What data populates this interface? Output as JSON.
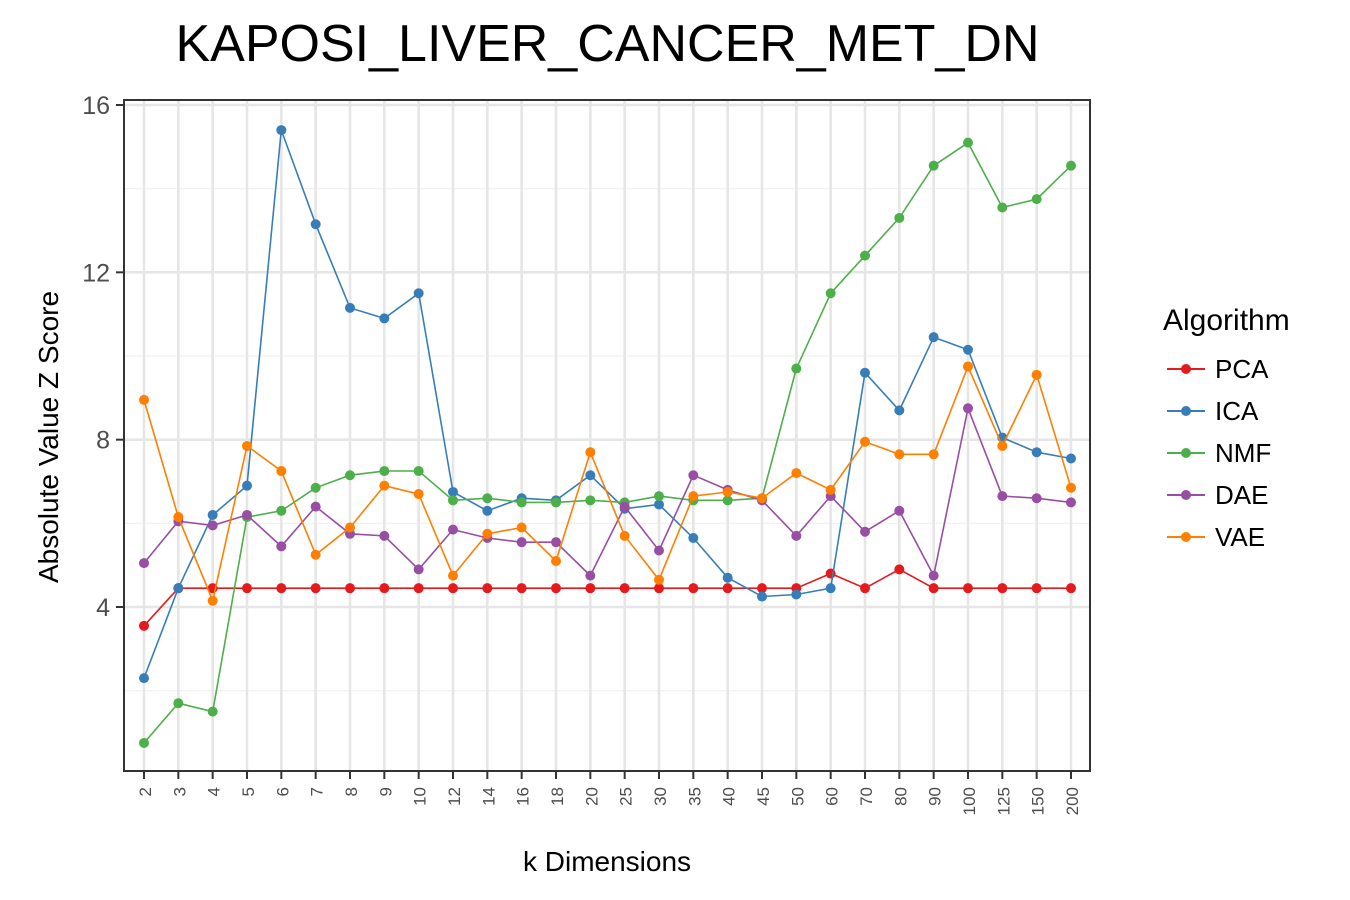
{
  "chart_data": {
    "type": "line",
    "title": "KAPOSI_LIVER_CANCER_MET_DN",
    "xlabel": "k Dimensions",
    "ylabel": "Absolute Value Z Score",
    "categories": [
      "2",
      "3",
      "4",
      "5",
      "6",
      "7",
      "8",
      "9",
      "10",
      "12",
      "14",
      "16",
      "18",
      "20",
      "25",
      "30",
      "35",
      "40",
      "45",
      "50",
      "60",
      "70",
      "80",
      "90",
      "100",
      "125",
      "150",
      "200"
    ],
    "ylim": [
      0,
      16
    ],
    "yticks": [
      4,
      8,
      12,
      16
    ],
    "grid": true,
    "legend": {
      "title": "Algorithm",
      "placement": "right"
    },
    "series": [
      {
        "name": "PCA",
        "color": "#e41a1c",
        "values": [
          3.55,
          4.45,
          4.45,
          4.45,
          4.45,
          4.45,
          4.45,
          4.45,
          4.45,
          4.45,
          4.45,
          4.45,
          4.45,
          4.45,
          4.45,
          4.45,
          4.45,
          4.45,
          4.45,
          4.45,
          4.8,
          4.45,
          4.9,
          4.45,
          4.45,
          4.45,
          4.45,
          4.45
        ]
      },
      {
        "name": "ICA",
        "color": "#377eb8",
        "values": [
          2.3,
          4.45,
          6.2,
          6.9,
          15.4,
          13.15,
          11.15,
          10.9,
          11.5,
          6.75,
          6.3,
          6.6,
          6.55,
          7.15,
          6.35,
          6.45,
          5.65,
          4.7,
          4.25,
          4.3,
          4.45,
          9.6,
          8.7,
          10.45,
          10.15,
          8.05,
          7.7,
          7.55
        ]
      },
      {
        "name": "NMF",
        "color": "#4daf4a",
        "values": [
          0.75,
          1.7,
          1.5,
          6.15,
          6.3,
          6.85,
          7.15,
          7.25,
          7.25,
          6.55,
          6.6,
          6.5,
          6.5,
          6.55,
          6.5,
          6.65,
          6.55,
          6.55,
          6.6,
          9.7,
          11.5,
          12.4,
          13.3,
          14.55,
          15.1,
          13.55,
          13.75,
          14.55
        ]
      },
      {
        "name": "DAE",
        "color": "#984ea3",
        "values": [
          5.05,
          6.05,
          5.95,
          6.2,
          5.45,
          6.4,
          5.75,
          5.7,
          4.9,
          5.85,
          5.65,
          5.55,
          5.55,
          4.75,
          6.4,
          5.35,
          7.15,
          6.8,
          6.55,
          5.7,
          6.65,
          5.8,
          6.3,
          4.75,
          8.75,
          6.65,
          6.6,
          6.5
        ]
      },
      {
        "name": "VAE",
        "color": "#ff7f00",
        "values": [
          8.95,
          6.15,
          4.15,
          7.85,
          7.25,
          5.25,
          5.9,
          6.9,
          6.7,
          4.75,
          5.75,
          5.9,
          5.1,
          7.7,
          5.7,
          4.65,
          6.65,
          6.75,
          6.6,
          7.2,
          6.8,
          7.95,
          7.65,
          7.65,
          9.75,
          7.85,
          9.55,
          6.85
        ]
      }
    ]
  }
}
